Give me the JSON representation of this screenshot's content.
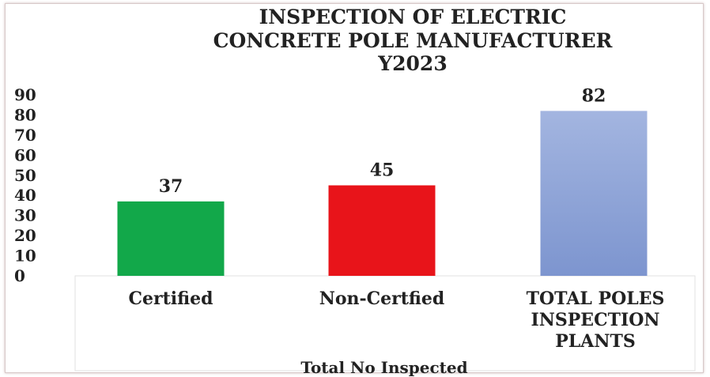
{
  "chart_data": {
    "type": "bar",
    "title": [
      "INSPECTION OF ELECTRIC",
      "CONCRETE POLE MANUFACTURER",
      "Y2023"
    ],
    "xlabel": "Total No Inspected",
    "ylabel": "",
    "categories": [
      [
        "Certified"
      ],
      [
        "Non-Certfied"
      ],
      [
        "TOTAL POLES",
        "INSPECTION",
        "PLANTS"
      ]
    ],
    "values": [
      37,
      45,
      82
    ],
    "data_labels": [
      "37",
      "45",
      "82"
    ],
    "ylim": [
      0,
      90
    ],
    "yticks": [
      "0",
      "10",
      "20",
      "30",
      "40",
      "50",
      "60",
      "70",
      "80",
      "90"
    ],
    "colors": [
      "#12a84a",
      "#e8141a",
      "#8ca3d6"
    ],
    "grid": false,
    "legend": "none"
  }
}
